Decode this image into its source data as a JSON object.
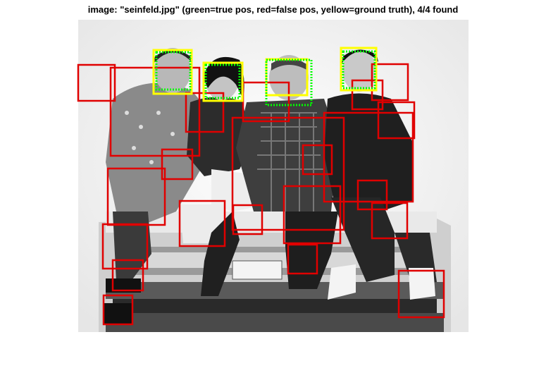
{
  "figure": {
    "title": "image: \"seinfeld.jpg\" (green=true pos, red=false pos, yellow=ground truth), 4/4 found",
    "colors": {
      "true_positive": "#00ff00",
      "false_positive": "#e00000",
      "ground_truth": "#ffff00",
      "photo_background": "#f3f3f3"
    }
  }
}
